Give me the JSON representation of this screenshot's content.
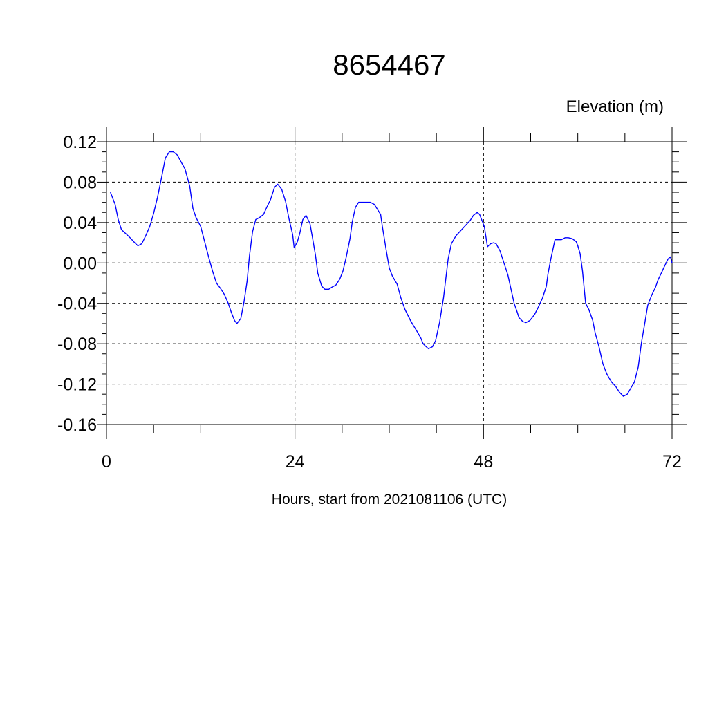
{
  "chart_data": {
    "type": "line",
    "title": "8654467",
    "ylabel": "Elevation (m)",
    "xlabel": "Hours, start from 2021081106 (UTC)",
    "xlim": [
      0,
      72
    ],
    "ylim": [
      -0.16,
      0.12
    ],
    "xticks": [
      0,
      24,
      48,
      72
    ],
    "xtick_labels": [
      "0",
      "24",
      "48",
      "72"
    ],
    "yticks": [
      0.12,
      0.08,
      0.04,
      0.0,
      -0.04,
      -0.08,
      -0.12,
      -0.16
    ],
    "ytick_labels": [
      "0.12",
      "0.08",
      "0.04",
      "0.00",
      "-0.04",
      "-0.08",
      "-0.12",
      "-0.16"
    ],
    "grid": "dashed at major ticks",
    "line_color": "#0000ff",
    "series": [
      {
        "x": [
          0.5,
          1.1,
          1.5,
          1.9,
          2.6,
          3.0,
          3.6,
          4.0,
          4.5,
          5.0,
          5.5,
          6.0,
          6.5,
          7.0,
          7.5,
          8.0,
          8.5,
          9.0,
          9.5,
          10.0,
          10.6,
          11.0,
          11.4,
          12.0,
          12.5,
          13.0,
          13.5,
          14.0,
          14.5,
          15.0,
          15.5,
          15.9,
          16.3,
          16.6,
          17.1,
          17.5,
          17.9,
          18.2,
          18.6,
          19.0,
          19.5,
          20.0,
          20.4,
          20.9,
          21.4,
          21.8,
          22.3,
          22.8,
          23.2,
          23.7,
          23.9,
          24.3,
          24.6,
          25.0,
          25.4,
          25.9,
          26.2,
          26.6,
          26.9,
          27.4,
          27.8,
          28.3,
          28.7,
          29.2,
          29.7,
          30.1,
          30.5,
          31.0,
          31.3,
          31.7,
          32.1,
          32.6,
          33.1,
          33.6,
          34.1,
          34.5,
          34.9,
          35.1,
          35.6,
          36.0,
          36.4,
          37.0,
          37.5,
          38.0,
          38.7,
          39.0,
          39.4,
          40.0,
          40.3,
          40.7,
          41.0,
          41.5,
          41.9,
          42.4,
          42.9,
          43.5,
          43.9,
          44.5,
          45.1,
          45.7,
          46.3,
          46.7,
          47.2,
          47.5,
          48.1,
          48.5,
          48.9,
          49.3,
          49.6,
          50.1,
          50.6,
          51.1,
          51.5,
          51.9,
          52.3,
          52.5,
          53.0,
          53.4,
          53.9,
          54.5,
          54.9,
          55.5,
          56.0,
          56.2,
          56.6,
          57.1,
          57.5,
          57.9,
          58.4,
          58.8,
          59.3,
          59.8,
          60.0,
          60.3,
          60.6,
          61.0,
          61.4,
          61.9,
          62.2,
          62.7,
          63.2,
          63.7,
          64.3,
          64.8,
          65.3,
          65.8,
          66.3,
          66.6,
          67.2,
          67.7,
          68.1,
          68.5,
          68.9,
          69.4,
          69.9,
          70.2,
          70.7,
          71.0,
          71.5,
          71.8,
          72.0
        ],
        "y": [
          0.07,
          0.058,
          0.043,
          0.033,
          0.028,
          0.025,
          0.02,
          0.017,
          0.019,
          0.027,
          0.036,
          0.049,
          0.065,
          0.084,
          0.104,
          0.11,
          0.11,
          0.107,
          0.1,
          0.093,
          0.076,
          0.054,
          0.045,
          0.036,
          0.021,
          0.006,
          -0.008,
          -0.02,
          -0.025,
          -0.031,
          -0.04,
          -0.049,
          -0.057,
          -0.06,
          -0.055,
          -0.039,
          -0.018,
          0.007,
          0.031,
          0.043,
          0.045,
          0.048,
          0.055,
          0.063,
          0.075,
          0.078,
          0.073,
          0.061,
          0.045,
          0.028,
          0.015,
          0.021,
          0.029,
          0.043,
          0.047,
          0.039,
          0.026,
          0.008,
          -0.01,
          -0.023,
          -0.026,
          -0.026,
          -0.024,
          -0.022,
          -0.016,
          -0.008,
          0.005,
          0.024,
          0.041,
          0.055,
          0.06,
          0.06,
          0.06,
          0.06,
          0.058,
          0.053,
          0.048,
          0.037,
          0.013,
          -0.005,
          -0.013,
          -0.021,
          -0.035,
          -0.046,
          -0.057,
          -0.061,
          -0.066,
          -0.074,
          -0.08,
          -0.083,
          -0.085,
          -0.083,
          -0.077,
          -0.059,
          -0.035,
          0.004,
          0.019,
          0.027,
          0.032,
          0.037,
          0.042,
          0.047,
          0.05,
          0.048,
          0.036,
          0.016,
          0.019,
          0.02,
          0.019,
          0.012,
          0.0,
          -0.012,
          -0.026,
          -0.04,
          -0.049,
          -0.054,
          -0.058,
          -0.059,
          -0.057,
          -0.051,
          -0.045,
          -0.035,
          -0.023,
          -0.011,
          0.005,
          0.023,
          0.023,
          0.023,
          0.025,
          0.025,
          0.024,
          0.021,
          0.017,
          0.009,
          -0.008,
          -0.04,
          -0.046,
          -0.057,
          -0.069,
          -0.083,
          -0.1,
          -0.11,
          -0.118,
          -0.122,
          -0.128,
          -0.132,
          -0.13,
          -0.126,
          -0.118,
          -0.103,
          -0.079,
          -0.061,
          -0.042,
          -0.032,
          -0.024,
          -0.017,
          -0.009,
          -0.004,
          0.004,
          0.006,
          0.0
        ]
      }
    ]
  }
}
